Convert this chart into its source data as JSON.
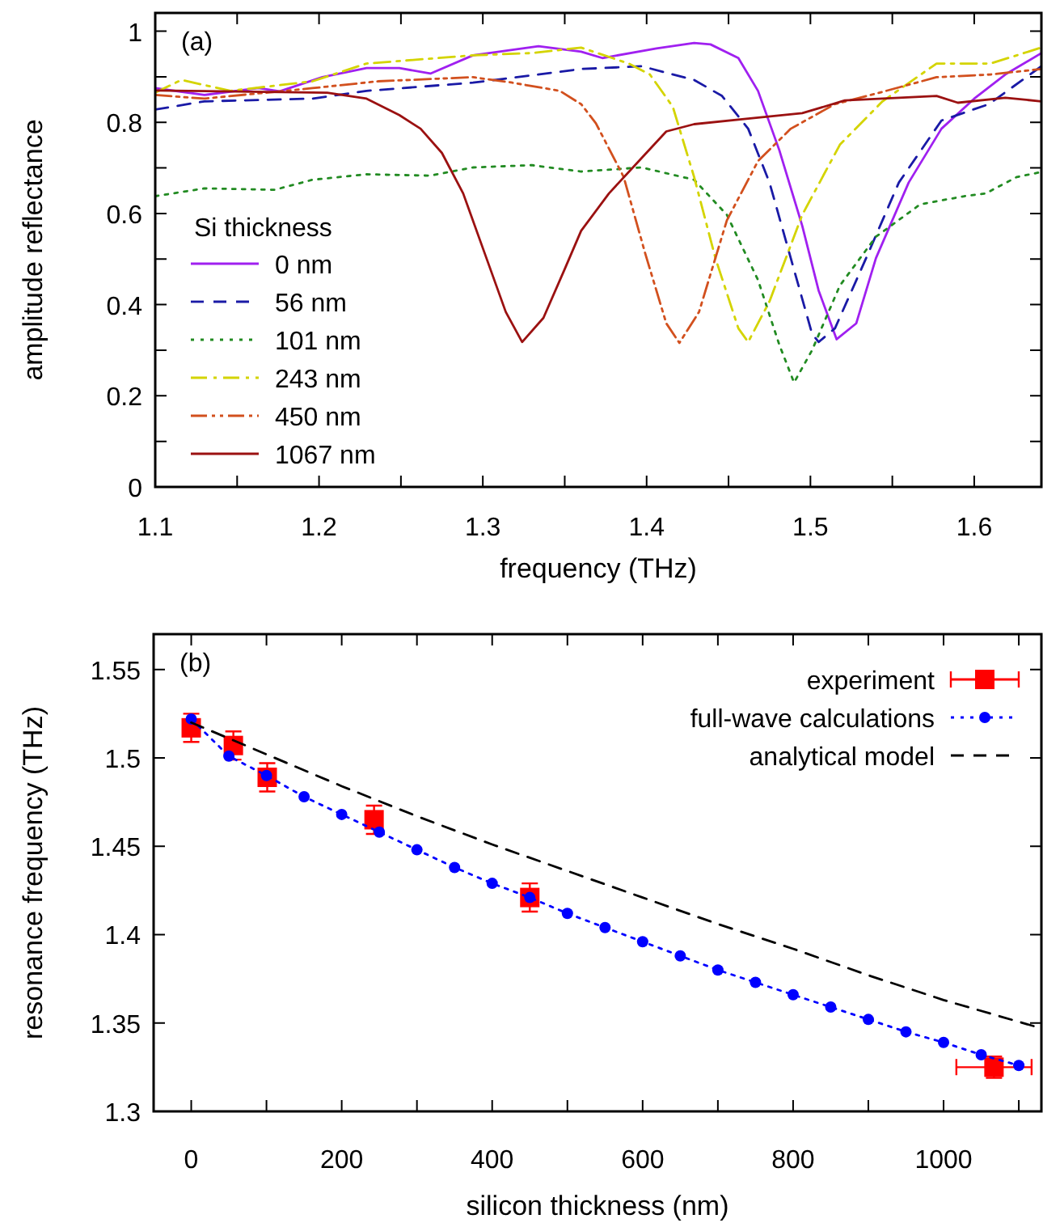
{
  "chart_data": [
    {
      "type": "line",
      "xlabel": "frequency (THz)",
      "ylabel": "amplitude reflectance",
      "legend_title": "Si thickness",
      "annotations": [
        "(a)"
      ],
      "legend": "bottom left",
      "grid": false,
      "xlim": [
        1.1,
        1.641
      ],
      "ylim": [
        0,
        1.04
      ],
      "xticks": [
        1.1,
        {
          "value": 1.15,
          "label": null
        },
        1.2,
        {
          "value": 1.25,
          "label": null
        },
        1.3,
        {
          "value": 1.35,
          "label": null
        },
        1.4,
        {
          "value": 1.45,
          "label": null
        },
        1.5,
        {
          "value": 1.55,
          "label": null
        },
        1.6
      ],
      "yticks": [
        0,
        {
          "value": 0.1,
          "label": null
        },
        0.2,
        {
          "value": 0.3,
          "label": null
        },
        0.4,
        {
          "value": 0.5,
          "label": null
        },
        0.6,
        {
          "value": 0.7,
          "label": null
        },
        0.8,
        {
          "value": 0.9,
          "label": null
        },
        1
      ],
      "series": [
        {
          "name": "0 nm",
          "color": "#a020f0",
          "line_style": "solid",
          "x": [
            1.1,
            1.13,
            1.163,
            1.176,
            1.202,
            1.229,
            1.249,
            1.268,
            1.294,
            1.334,
            1.36,
            1.373,
            1.406,
            1.429,
            1.439,
            1.456,
            1.468,
            1.481,
            1.495,
            1.505,
            1.516,
            1.528,
            1.54,
            1.56,
            1.58,
            1.6,
            1.619,
            1.641
          ],
          "values": [
            0.875,
            0.86,
            0.875,
            0.868,
            0.899,
            0.919,
            0.919,
            0.907,
            0.947,
            0.967,
            0.955,
            0.941,
            0.962,
            0.974,
            0.971,
            0.941,
            0.869,
            0.739,
            0.573,
            0.431,
            0.324,
            0.359,
            0.502,
            0.668,
            0.786,
            0.852,
            0.905,
            0.952
          ]
        },
        {
          "name": "56 nm",
          "color": "#1a1aa6",
          "line_style": "dashed",
          "x": [
            1.1,
            1.13,
            1.196,
            1.229,
            1.294,
            1.36,
            1.397,
            1.429,
            1.446,
            1.462,
            1.475,
            1.488,
            1.501,
            1.505,
            1.515,
            1.534,
            1.554,
            1.58,
            1.609,
            1.641
          ],
          "values": [
            0.828,
            0.846,
            0.852,
            0.869,
            0.887,
            0.917,
            0.923,
            0.893,
            0.858,
            0.786,
            0.668,
            0.502,
            0.336,
            0.318,
            0.348,
            0.502,
            0.668,
            0.804,
            0.84,
            0.923
          ]
        },
        {
          "name": "101 nm",
          "color": "#228b22",
          "line_style": "dotted",
          "x": [
            1.1,
            1.13,
            1.173,
            1.196,
            1.229,
            1.268,
            1.294,
            1.33,
            1.36,
            1.397,
            1.429,
            1.449,
            1.468,
            1.481,
            1.49,
            1.501,
            1.518,
            1.54,
            1.567,
            1.594,
            1.607,
            1.626,
            1.641
          ],
          "values": [
            0.638,
            0.655,
            0.652,
            0.674,
            0.686,
            0.683,
            0.701,
            0.706,
            0.692,
            0.701,
            0.674,
            0.597,
            0.454,
            0.312,
            0.229,
            0.3,
            0.442,
            0.549,
            0.62,
            0.638,
            0.644,
            0.68,
            0.691
          ]
        },
        {
          "name": "243 nm",
          "color": "#d4d400",
          "line_style": "dashdot",
          "x": [
            1.1,
            1.116,
            1.146,
            1.196,
            1.229,
            1.294,
            1.33,
            1.36,
            1.389,
            1.402,
            1.416,
            1.429,
            1.442,
            1.456,
            1.462,
            1.475,
            1.495,
            1.518,
            1.544,
            1.577,
            1.61,
            1.641
          ],
          "values": [
            0.865,
            0.893,
            0.869,
            0.89,
            0.929,
            0.947,
            0.952,
            0.964,
            0.929,
            0.905,
            0.834,
            0.68,
            0.502,
            0.348,
            0.318,
            0.407,
            0.597,
            0.751,
            0.846,
            0.929,
            0.929,
            0.964
          ]
        },
        {
          "name": "450 nm",
          "color": "#d2501e",
          "line_style": "dashdotdot",
          "x": [
            1.1,
            1.13,
            1.196,
            1.236,
            1.294,
            1.318,
            1.347,
            1.36,
            1.369,
            1.386,
            1.399,
            1.412,
            1.42,
            1.432,
            1.449,
            1.468,
            1.488,
            1.515,
            1.541,
            1.577,
            1.61,
            1.641
          ],
          "values": [
            0.86,
            0.852,
            0.875,
            0.89,
            0.899,
            0.887,
            0.869,
            0.84,
            0.798,
            0.68,
            0.514,
            0.359,
            0.316,
            0.384,
            0.585,
            0.715,
            0.786,
            0.84,
            0.864,
            0.899,
            0.905,
            0.917
          ]
        },
        {
          "name": "1067 nm",
          "color": "#9b1111",
          "line_style": "solid",
          "x": [
            1.1,
            1.205,
            1.229,
            1.249,
            1.262,
            1.275,
            1.288,
            1.301,
            1.314,
            1.324,
            1.337,
            1.35,
            1.36,
            1.377,
            1.397,
            1.412,
            1.429,
            1.462,
            1.495,
            1.521,
            1.544,
            1.577,
            1.59,
            1.619,
            1.641
          ],
          "values": [
            0.87,
            0.865,
            0.852,
            0.816,
            0.786,
            0.733,
            0.644,
            0.514,
            0.384,
            0.318,
            0.371,
            0.478,
            0.562,
            0.644,
            0.722,
            0.78,
            0.796,
            0.808,
            0.82,
            0.848,
            0.852,
            0.858,
            0.843,
            0.854,
            0.846
          ]
        }
      ]
    },
    {
      "type": "line",
      "xlabel": "silicon thickness (nm)",
      "ylabel": "resonance frequency (THz)",
      "annotations": [
        "(b)"
      ],
      "legend": "top right",
      "grid": false,
      "xlim": [
        -50,
        1130
      ],
      "ylim": [
        1.3,
        1.57
      ],
      "xticks": [
        0,
        {
          "value": 100,
          "label": null
        },
        200,
        {
          "value": 300,
          "label": null
        },
        400,
        {
          "value": 500,
          "label": null
        },
        600,
        {
          "value": 700,
          "label": null
        },
        800,
        {
          "value": 900,
          "label": null
        },
        1000,
        {
          "value": 1100,
          "label": null
        }
      ],
      "yticks": [
        1.3,
        1.35,
        1.4,
        1.45,
        1.5,
        1.55
      ],
      "series": [
        {
          "name": "experiment",
          "type": "scatter",
          "marker": "square",
          "color": "#ff0000",
          "x": [
            0,
            56,
            101,
            243,
            450,
            1067
          ],
          "values": [
            1.517,
            1.507,
            1.489,
            1.465,
            1.421,
            1.325
          ],
          "errors": [
            0.008,
            0.008,
            0.008,
            0.008,
            0.008,
            0.006
          ],
          "xerrors": [
            null,
            null,
            null,
            null,
            null,
            50
          ]
        },
        {
          "name": "full-wave calculations",
          "type": "line",
          "marker": "circle",
          "line_style": "dotted",
          "color": "#0000ff",
          "x": [
            0,
            50,
            100,
            150,
            200,
            250,
            300,
            350,
            400,
            450,
            500,
            550,
            600,
            650,
            700,
            750,
            800,
            850,
            900,
            950,
            1000,
            1050,
            1100
          ],
          "values": [
            1.522,
            1.501,
            1.49,
            1.478,
            1.468,
            1.458,
            1.448,
            1.438,
            1.429,
            1.421,
            1.412,
            1.404,
            1.396,
            1.388,
            1.38,
            1.373,
            1.366,
            1.359,
            1.352,
            1.345,
            1.339,
            1.332,
            1.326
          ]
        },
        {
          "name": "analytical model",
          "type": "line",
          "marker": "none",
          "line_style": "dashed",
          "color": "#000000",
          "x": [
            0,
            100,
            200,
            300,
            400,
            500,
            600,
            700,
            800,
            900,
            1000,
            1130
          ],
          "values": [
            1.52,
            1.502,
            1.484,
            1.467,
            1.451,
            1.436,
            1.421,
            1.406,
            1.392,
            1.377,
            1.363,
            1.347
          ]
        }
      ]
    }
  ]
}
